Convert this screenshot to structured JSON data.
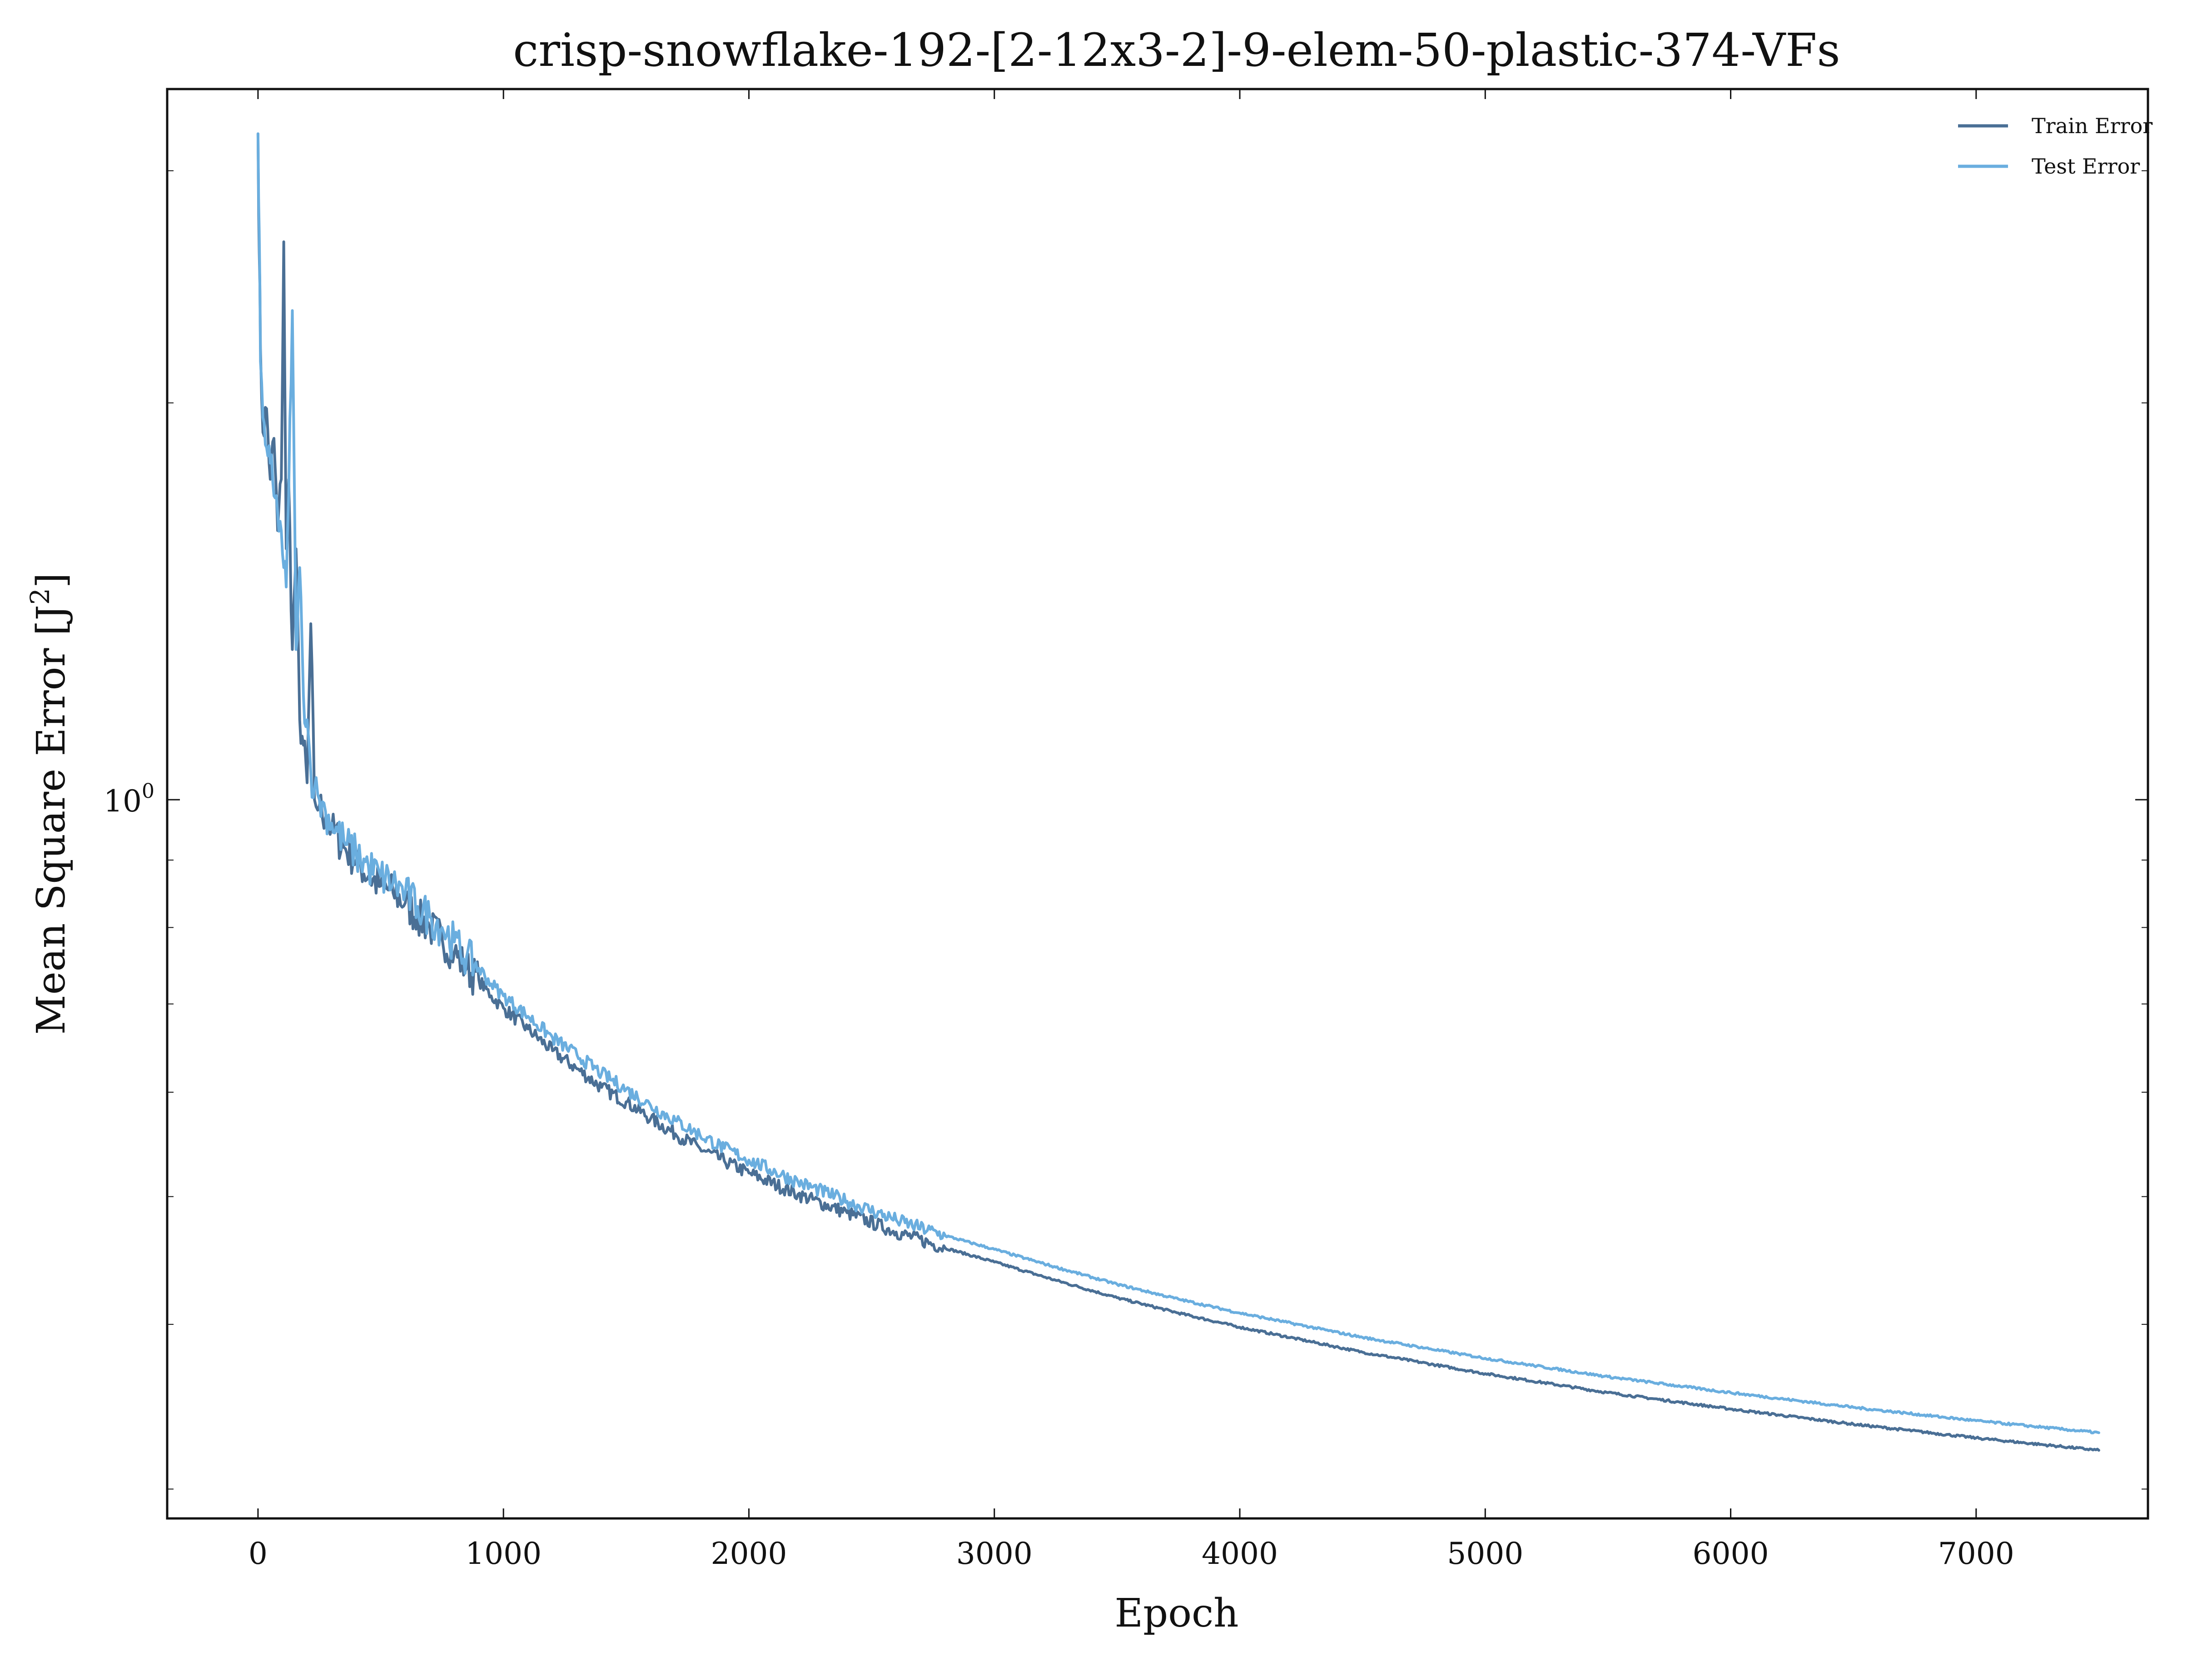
{
  "chart_data": {
    "type": "line",
    "title": "crisp-snowflake-192-[2-12x3-2]-9-elem-50-plastic-374-VFs",
    "xlabel": "Epoch",
    "ylabel": "Mean Square Error [J",
    "ylabel_sup": "2",
    "ylabel_close": "]",
    "yscale": "log",
    "xlim": [
      -370,
      7700
    ],
    "ylim": [
      0.285,
      3.46
    ],
    "x_ticks": [
      0,
      1000,
      2000,
      3000,
      4000,
      5000,
      6000,
      7000
    ],
    "x_tick_labels": [
      "0",
      "1000",
      "2000",
      "3000",
      "4000",
      "5000",
      "6000",
      "7000"
    ],
    "y_major_ticks": [
      1.0
    ],
    "y_major_tick_labels": [
      {
        "base": "10",
        "exp": "0"
      }
    ],
    "y_minor_ticks": [
      0.3,
      0.4,
      0.5,
      0.6,
      0.7,
      0.8,
      0.9,
      2,
      3
    ],
    "grid": false,
    "legend_position": "top-right",
    "colors": {
      "train": "#4a6f95",
      "test": "#6aaedf",
      "axes": "#111111"
    },
    "series": [
      {
        "name": "Train Error",
        "color": "#4a6f95",
        "x": [
          0,
          5,
          10,
          20,
          35,
          50,
          65,
          80,
          95,
          105,
          115,
          125,
          140,
          155,
          170,
          185,
          200,
          215,
          230,
          250,
          275,
          300,
          350,
          400,
          450,
          500,
          550,
          600,
          650,
          700,
          750,
          800,
          850,
          900,
          950,
          1000,
          1100,
          1200,
          1300,
          1400,
          1500,
          1600,
          1700,
          1800,
          1900,
          2000,
          2200,
          2400,
          2600,
          2800,
          3000,
          3250,
          3500,
          3750,
          4000,
          4500,
          5000,
          5500,
          6000,
          6500,
          7000,
          7500
        ],
        "y": [
          3.2,
          2.6,
          2.2,
          1.9,
          1.98,
          1.75,
          1.88,
          1.6,
          1.75,
          2.65,
          1.55,
          1.75,
          1.3,
          1.55,
          1.15,
          1.1,
          1.03,
          1.36,
          1.0,
          0.99,
          0.97,
          0.95,
          0.92,
          0.9,
          0.875,
          0.86,
          0.85,
          0.835,
          0.815,
          0.8,
          0.785,
          0.765,
          0.745,
          0.73,
          0.71,
          0.695,
          0.67,
          0.645,
          0.625,
          0.605,
          0.59,
          0.573,
          0.558,
          0.544,
          0.532,
          0.521,
          0.502,
          0.486,
          0.47,
          0.457,
          0.446,
          0.432,
          0.419,
          0.408,
          0.398,
          0.381,
          0.367,
          0.355,
          0.345,
          0.336,
          0.328,
          0.321
        ]
      },
      {
        "name": "Test Error",
        "color": "#6aaedf",
        "x": [
          0,
          5,
          10,
          20,
          35,
          50,
          65,
          80,
          95,
          105,
          115,
          125,
          140,
          155,
          170,
          185,
          200,
          215,
          230,
          250,
          275,
          300,
          350,
          400,
          450,
          500,
          550,
          600,
          650,
          700,
          750,
          800,
          850,
          900,
          950,
          1000,
          1100,
          1200,
          1300,
          1400,
          1500,
          1600,
          1700,
          1800,
          1900,
          2000,
          2200,
          2400,
          2600,
          2800,
          3000,
          3250,
          3500,
          3750,
          4000,
          4500,
          5000,
          5500,
          6000,
          6500,
          7000,
          7500
        ],
        "y": [
          3.2,
          2.7,
          2.15,
          1.95,
          1.85,
          1.8,
          1.7,
          1.65,
          1.6,
          1.5,
          1.45,
          1.7,
          2.35,
          1.3,
          1.5,
          1.2,
          1.15,
          1.05,
          1.02,
          1.0,
          0.98,
          0.96,
          0.93,
          0.91,
          0.89,
          0.875,
          0.865,
          0.85,
          0.83,
          0.815,
          0.8,
          0.78,
          0.76,
          0.745,
          0.725,
          0.71,
          0.685,
          0.66,
          0.64,
          0.62,
          0.603,
          0.586,
          0.571,
          0.557,
          0.544,
          0.533,
          0.513,
          0.496,
          0.48,
          0.467,
          0.456,
          0.442,
          0.429,
          0.418,
          0.408,
          0.391,
          0.377,
          0.365,
          0.355,
          0.346,
          0.338,
          0.331
        ]
      }
    ]
  }
}
